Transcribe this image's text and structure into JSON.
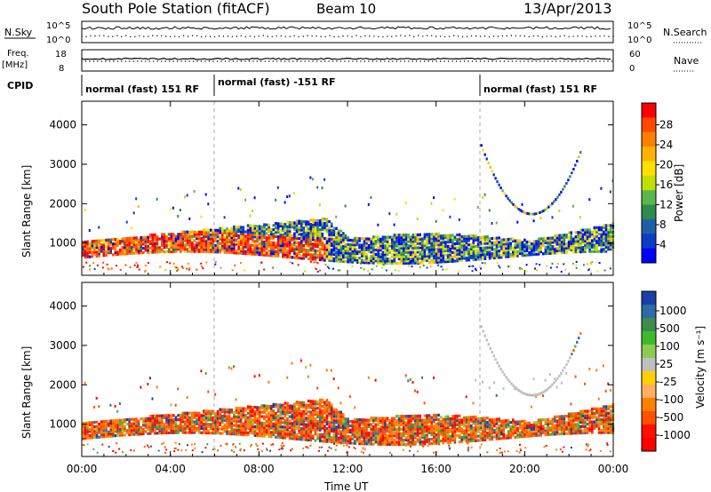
{
  "header": {
    "title": "South Pole Station (fitACF)",
    "beam": "Beam 10",
    "date": "13/Apr/2013"
  },
  "top_panels": {
    "nsky_label": "N.Sky",
    "nsearch_label": "N.Search",
    "nsky_ticks": [
      "10^5",
      "10^0"
    ],
    "nsearch_ticks": [
      "10^5",
      "10^0"
    ],
    "freq_label_1": "Freq.",
    "freq_label_2": "[MHz]",
    "freq_ticks": [
      "18",
      "8"
    ],
    "nave_label": "Nave",
    "nave_ticks": [
      "60",
      "0"
    ],
    "cpid_label": "CPID"
  },
  "cpid_segments": [
    {
      "label": "normal (fast) 151 RF",
      "start_hour": 0,
      "end_hour": 6
    },
    {
      "label": "normal (fast) -151 RF",
      "start_hour": 6,
      "end_hour": 18
    },
    {
      "label": "normal (fast) 151 RF",
      "start_hour": 18,
      "end_hour": 24
    }
  ],
  "colorbars": {
    "power": {
      "title": "Power [dB]",
      "ticks": [
        "28",
        "24",
        "20",
        "16",
        "12",
        "8",
        "4"
      ],
      "colors": [
        "#ff0000",
        "#ff4a00",
        "#ff8000",
        "#ffb300",
        "#ffe000",
        "#c0e000",
        "#5ab84a",
        "#2f8a4e",
        "#1f5fa8",
        "#0a3cc8",
        "#0000ff"
      ]
    },
    "velocity": {
      "title": "Velocity [m s⁻¹]",
      "ticks": [
        "1000",
        "500",
        "100",
        "25",
        "-25",
        "-100",
        "-500",
        "-1000"
      ],
      "colors": [
        "#1a3fa8",
        "#2f6aa8",
        "#3f8a4e",
        "#3cbc2c",
        "#8ccc50",
        "#bfbfbf",
        "#ffd000",
        "#ffb060",
        "#ff8000",
        "#ff5000",
        "#ff1000",
        "#ff0000"
      ]
    }
  },
  "chart_data": [
    {
      "type": "heatmap",
      "panel": "power",
      "ylabel": "Slant Range [km]",
      "xlabel": "Time UT",
      "x_ticks": [
        "00:00",
        "04:00",
        "08:00",
        "12:00",
        "16:00",
        "20:00",
        "00:00"
      ],
      "y_ticks": [
        "1000",
        "2000",
        "3000",
        "4000"
      ],
      "xlim_hours": [
        0,
        24
      ],
      "ylim_km": [
        180,
        4600
      ],
      "colorbar_range_db": [
        0,
        32
      ]
    },
    {
      "type": "heatmap",
      "panel": "velocity",
      "ylabel": "Slant Range [km]",
      "xlabel": "Time UT",
      "x_ticks": [
        "00:00",
        "04:00",
        "08:00",
        "12:00",
        "16:00",
        "20:00",
        "00:00"
      ],
      "y_ticks": [
        "1000",
        "2000",
        "3000",
        "4000"
      ],
      "xlim_hours": [
        0,
        24
      ],
      "ylim_km": [
        180,
        4600
      ],
      "colorbar_range_ms": [
        -1000,
        1000
      ]
    }
  ]
}
